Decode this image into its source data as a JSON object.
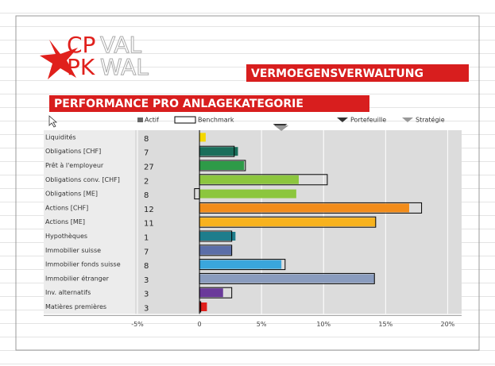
{
  "header": {
    "logo": [
      "CP",
      "VAL",
      "PK",
      "WAL"
    ],
    "banner": "VERMOEGENSVERWALTUNG"
  },
  "chart_data": {
    "type": "hbar",
    "title": "PERFORMANCE PRO ANLAGEKATEGORIE",
    "categories": [
      "Liquidités",
      "Obligations [CHF]",
      "Prêt à l'employeur",
      "Obligations conv. [CHF]",
      "Obligations [ME]",
      "Actions [CHF]",
      "Actions [ME]",
      "Hypothèques",
      "Immobilier suisse",
      "Immobilier fonds suisse",
      "Immobilier étranger",
      "Inv. alternatifs",
      "Matières premières"
    ],
    "weights": [
      8,
      7,
      27,
      2,
      8,
      12,
      11,
      1,
      7,
      8,
      3,
      3,
      3
    ],
    "series": [
      {
        "name": "Actif",
        "color": "#666666",
        "colors": [
          "#f5d800",
          "#1a6e5a",
          "#2e9a48",
          "#8cc63e",
          "#8cc63e",
          "#f28c1a",
          "#f7b21e",
          "#1e7d8c",
          "#5b6ea8",
          "#3aa6dc",
          "#8a9cbe",
          "#6a3a9a",
          "#e0201c"
        ],
        "values": [
          0.5,
          3.1,
          3.6,
          8.0,
          7.8,
          16.9,
          14.2,
          2.9,
          2.6,
          6.6,
          14.1,
          1.9,
          0.6
        ]
      },
      {
        "name": "Benchmark",
        "color": "#000000",
        "values": [
          null,
          2.8,
          3.7,
          10.3,
          -0.4,
          17.9,
          14.2,
          2.6,
          2.6,
          6.9,
          14.1,
          2.6,
          0.1
        ]
      }
    ],
    "markers": [
      {
        "name": "Portefeuille",
        "color": "#333333",
        "value": 6.5
      },
      {
        "name": "Stratégie",
        "color": "#999999",
        "value": 6.6
      }
    ],
    "xlim": [
      -5,
      21
    ],
    "xticks": [
      {
        "value": -5,
        "label": "-5%"
      },
      0,
      {
        "value": 5,
        "label": "5%"
      },
      {
        "value": 10,
        "label": "10%"
      },
      {
        "value": 15,
        "label": "15%"
      },
      {
        "value": 20,
        "label": "20%"
      }
    ],
    "grid": true
  }
}
